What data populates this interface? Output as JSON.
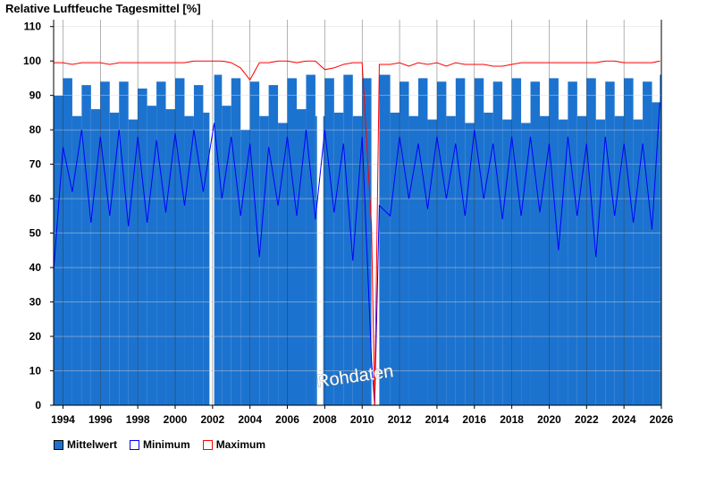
{
  "chart_data": {
    "type": "bar",
    "title": "Relative Luftfeuche Tagesmittel [%]",
    "watermark": "Rohdaten",
    "x_range": [
      "1993-07",
      "2026-01"
    ],
    "ylim": [
      0,
      112
    ],
    "yticks": [
      0,
      10,
      20,
      30,
      40,
      50,
      60,
      70,
      80,
      90,
      100,
      110
    ],
    "xticks": [
      1994,
      1996,
      1998,
      2000,
      2002,
      2004,
      2006,
      2008,
      2010,
      2012,
      2014,
      2016,
      2018,
      2020,
      2022,
      2024,
      2026
    ],
    "grid": true,
    "legend_position": "bottom-left",
    "colors": {
      "mittelwert": "#1c73cf",
      "minimum": "#0000ff",
      "maximum": "#ff0000",
      "gridline": "#1a1a1a"
    },
    "data_gaps": [
      [
        "2001-11",
        "2002-02"
      ],
      [
        "2007-08",
        "2007-12"
      ],
      [
        "2010-07",
        "2010-09"
      ],
      [
        "2010-09",
        "2010-11"
      ]
    ],
    "series": [
      {
        "name": "Mittelwert",
        "x": [
          "1993-07",
          "1994-01",
          "1994-07",
          "1995-01",
          "1995-07",
          "1996-01",
          "1996-07",
          "1997-01",
          "1997-07",
          "1998-01",
          "1998-07",
          "1999-01",
          "1999-07",
          "2000-01",
          "2000-07",
          "2001-01",
          "2001-07",
          "2002-02",
          "2002-07",
          "2003-01",
          "2003-07",
          "2004-01",
          "2004-07",
          "2005-01",
          "2005-07",
          "2006-01",
          "2006-07",
          "2007-01",
          "2007-07",
          "2008-01",
          "2008-07",
          "2009-01",
          "2009-07",
          "2010-01",
          "2010-07",
          "2010-09",
          "2010-12",
          "2011-07",
          "2012-01",
          "2012-07",
          "2013-01",
          "2013-07",
          "2014-01",
          "2014-07",
          "2015-01",
          "2015-07",
          "2016-01",
          "2016-07",
          "2017-01",
          "2017-07",
          "2018-01",
          "2018-07",
          "2019-01",
          "2019-07",
          "2020-01",
          "2020-07",
          "2021-01",
          "2021-07",
          "2022-01",
          "2022-07",
          "2023-01",
          "2023-07",
          "2024-01",
          "2024-07",
          "2025-01",
          "2025-07",
          "2025-12"
        ],
        "values": [
          90,
          95,
          84,
          93,
          86,
          94,
          85,
          94,
          83,
          92,
          87,
          94,
          86,
          95,
          84,
          93,
          85,
          96,
          87,
          95,
          80,
          94,
          84,
          93,
          82,
          95,
          86,
          96,
          84,
          95,
          85,
          96,
          84,
          95,
          13,
          0,
          96,
          85,
          94,
          84,
          95,
          83,
          94,
          84,
          95,
          82,
          95,
          85,
          94,
          83,
          95,
          82,
          94,
          84,
          95,
          83,
          94,
          84,
          95,
          83,
          94,
          84,
          95,
          83,
          94,
          88,
          96
        ]
      },
      {
        "name": "Minimum",
        "x": [
          "1993-07",
          "1994-01",
          "1994-07",
          "1995-01",
          "1995-07",
          "1996-01",
          "1996-07",
          "1997-01",
          "1997-07",
          "1998-01",
          "1998-07",
          "1999-01",
          "1999-07",
          "2000-01",
          "2000-07",
          "2001-01",
          "2001-07",
          "2002-02",
          "2002-07",
          "2003-01",
          "2003-07",
          "2004-01",
          "2004-07",
          "2005-01",
          "2005-07",
          "2006-01",
          "2006-07",
          "2007-01",
          "2007-07",
          "2008-01",
          "2008-07",
          "2009-01",
          "2009-07",
          "2010-01",
          "2010-07",
          "2010-09",
          "2010-12",
          "2011-07",
          "2012-01",
          "2012-07",
          "2013-01",
          "2013-07",
          "2014-01",
          "2014-07",
          "2015-01",
          "2015-07",
          "2016-01",
          "2016-07",
          "2017-01",
          "2017-07",
          "2018-01",
          "2018-07",
          "2019-01",
          "2019-07",
          "2020-01",
          "2020-07",
          "2021-01",
          "2021-07",
          "2022-01",
          "2022-07",
          "2023-01",
          "2023-07",
          "2024-01",
          "2024-07",
          "2025-01",
          "2025-07",
          "2025-12"
        ],
        "values": [
          39,
          75,
          62,
          80,
          53,
          78,
          55,
          80,
          52,
          78,
          53,
          77,
          56,
          79,
          58,
          80,
          62,
          82,
          60,
          78,
          55,
          76,
          43,
          75,
          58,
          78,
          55,
          80,
          54,
          80,
          56,
          76,
          42,
          78,
          13,
          0,
          58,
          55,
          78,
          60,
          76,
          57,
          78,
          60,
          76,
          55,
          80,
          60,
          76,
          54,
          78,
          55,
          78,
          56,
          76,
          45,
          78,
          55,
          76,
          43,
          78,
          55,
          76,
          53,
          76,
          51,
          88
        ]
      },
      {
        "name": "Maximum",
        "x": [
          "1993-07",
          "1994-01",
          "1994-07",
          "1995-01",
          "1995-07",
          "1996-01",
          "1996-07",
          "1997-01",
          "1997-07",
          "1998-01",
          "1998-07",
          "1999-01",
          "1999-07",
          "2000-01",
          "2000-07",
          "2001-01",
          "2001-07",
          "2002-02",
          "2002-07",
          "2003-01",
          "2003-07",
          "2004-01",
          "2004-07",
          "2005-01",
          "2005-07",
          "2006-01",
          "2006-07",
          "2007-01",
          "2007-07",
          "2008-01",
          "2008-07",
          "2009-01",
          "2009-07",
          "2010-01",
          "2010-07",
          "2010-09",
          "2010-12",
          "2011-07",
          "2012-01",
          "2012-07",
          "2013-01",
          "2013-07",
          "2014-01",
          "2014-07",
          "2015-01",
          "2015-07",
          "2016-01",
          "2016-07",
          "2017-01",
          "2017-07",
          "2018-01",
          "2018-07",
          "2019-01",
          "2019-07",
          "2020-01",
          "2020-07",
          "2021-01",
          "2021-07",
          "2022-01",
          "2022-07",
          "2023-01",
          "2023-07",
          "2024-01",
          "2024-07",
          "2025-01",
          "2025-07",
          "2025-12"
        ],
        "values": [
          99.5,
          99.5,
          99,
          99.5,
          99.5,
          99.5,
          99,
          99.5,
          99.5,
          99.5,
          99.5,
          99.5,
          99.5,
          99.5,
          99.5,
          100,
          100,
          100,
          100,
          99.5,
          98,
          94.5,
          99.5,
          99.5,
          100,
          100,
          99.5,
          100,
          100,
          97.5,
          98,
          99,
          99.5,
          99.5,
          52,
          0,
          99,
          99,
          99.5,
          98.5,
          99.5,
          99,
          99.5,
          98.5,
          99.5,
          99,
          99,
          99,
          98.5,
          98.5,
          99,
          99.5,
          99.5,
          99.5,
          99.5,
          99.5,
          99.5,
          99.5,
          99.5,
          99.5,
          100,
          100,
          99.5,
          99.5,
          99.5,
          99.5,
          100
        ]
      }
    ]
  }
}
